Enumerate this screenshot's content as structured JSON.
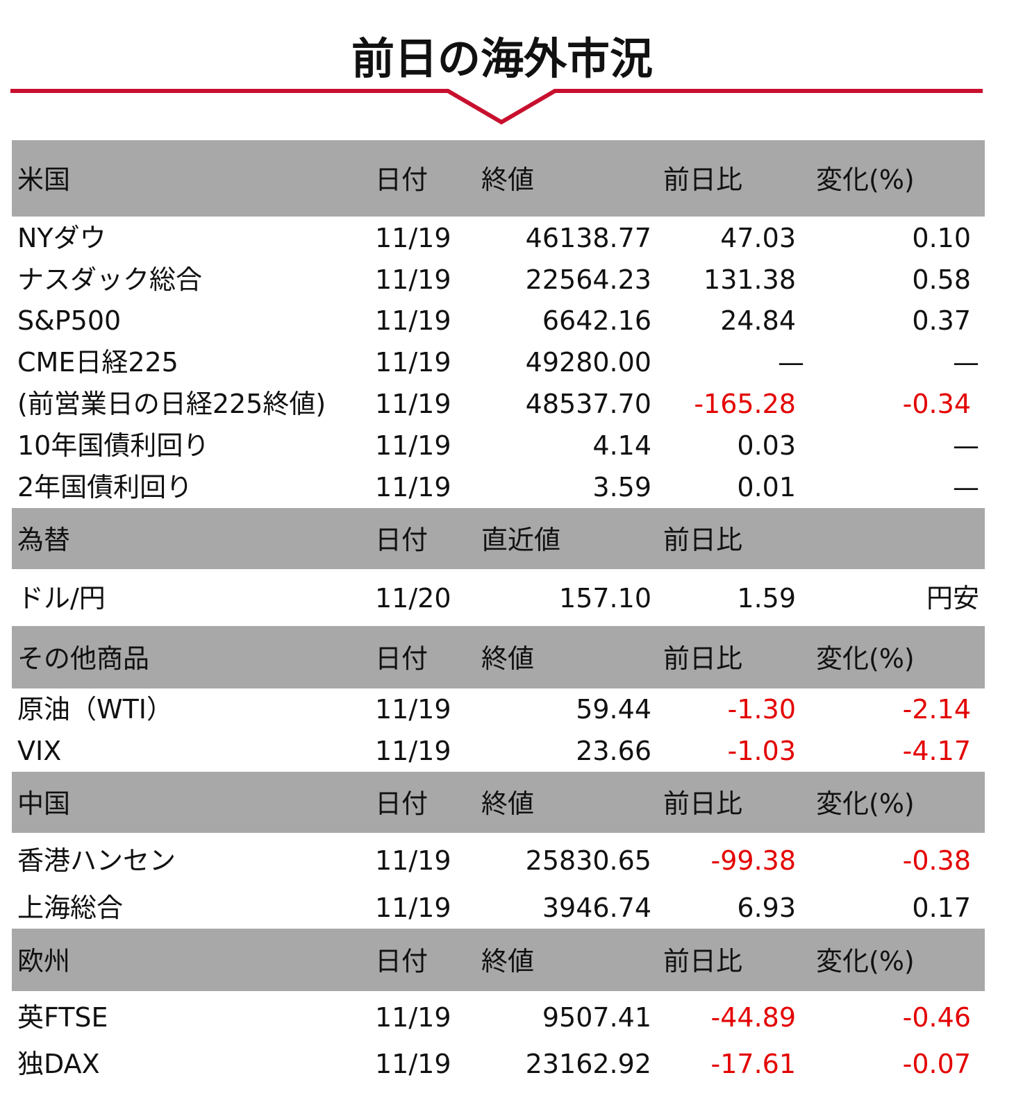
{
  "header": {
    "title": "前日の海外市況"
  },
  "sections": [
    {
      "header": [
        "米国",
        "日付",
        "終値",
        "前日比",
        "変化(%)"
      ],
      "rows": [
        [
          "NYダウ",
          "11/19",
          "46138.77",
          "47.03",
          "0.10"
        ],
        [
          "ナスダック総合",
          "11/19",
          "22564.23",
          "131.38",
          "0.58"
        ],
        [
          "S&P500",
          "11/19",
          "6642.16",
          "24.84",
          "0.37"
        ],
        [
          "CME日経225",
          "11/19",
          "49280.00",
          "—",
          "—"
        ],
        [
          "(前営業日の日経225終値)",
          "11/19",
          "48537.70",
          "-165.28",
          "-0.34"
        ],
        [
          "10年国債利回り",
          "11/19",
          "4.14",
          "0.03",
          "—"
        ],
        [
          "2年国債利回り",
          "11/19",
          "3.59",
          "0.01",
          "—"
        ]
      ]
    },
    {
      "header": [
        "為替",
        "日付",
        "直近値",
        "前日比"
      ],
      "rows": [
        [
          "ドル/円",
          "11/20",
          "157.10",
          "1.59",
          "円安"
        ]
      ]
    },
    {
      "header": [
        "その他商品",
        "日付",
        "終値",
        "前日比",
        "変化(%)"
      ],
      "rows": [
        [
          "原油（WTI）",
          "11/19",
          "59.44",
          "-1.30",
          "-2.14"
        ],
        [
          "VIX",
          "11/19",
          "23.66",
          "-1.03",
          "-4.17"
        ]
      ]
    },
    {
      "header": [
        "中国",
        "日付",
        "終値",
        "前日比",
        "変化(%)"
      ],
      "rows": [
        [
          "香港ハンセン",
          "11/19",
          "25830.65",
          "-99.38",
          "-0.38"
        ],
        [
          "上海総合",
          "11/19",
          "3946.74",
          "6.93",
          "0.17"
        ]
      ]
    },
    {
      "header": [
        "欧州",
        "日付",
        "終値",
        "前日比",
        "変化(%)"
      ],
      "rows": [
        [
          "英FTSE",
          "11/19",
          "9507.41",
          "-44.89",
          "-0.46"
        ],
        [
          "独DAX",
          "11/19",
          "23162.92",
          "-17.61",
          "-0.07"
        ]
      ]
    }
  ]
}
